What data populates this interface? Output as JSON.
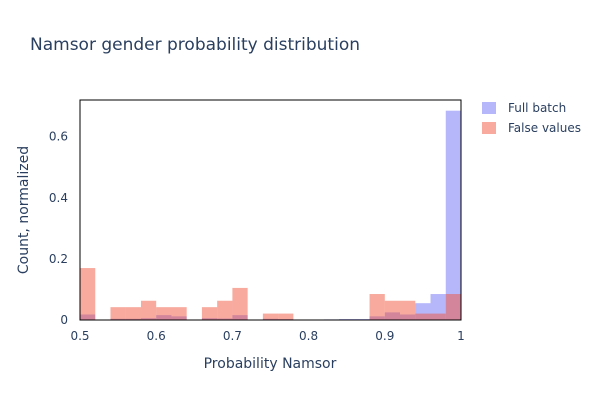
{
  "chart_data": {
    "type": "bar",
    "title": "Namsor gender probability distribution",
    "xlabel": "Probability Namsor",
    "ylabel": "Count, normalized",
    "xlim": [
      0.5,
      1.0
    ],
    "ylim": [
      0,
      0.72
    ],
    "bin_width": 0.02,
    "x_ticks": [
      "0.5",
      "0.6",
      "0.7",
      "0.8",
      "0.9",
      "1"
    ],
    "x_tick_values": [
      0.5,
      0.6,
      0.7,
      0.8,
      0.9,
      1.0
    ],
    "y_ticks": [
      "0",
      "0.2",
      "0.4",
      "0.6"
    ],
    "y_tick_values": [
      0,
      0.2,
      0.4,
      0.6
    ],
    "grid": true,
    "legend_position": "top-right",
    "series": [
      {
        "name": "Full batch",
        "color": "#6e6ef7",
        "opacity": 0.5,
        "bins": [
          {
            "x": 0.5,
            "value": 0.018
          },
          {
            "x": 0.54,
            "value": 0.004
          },
          {
            "x": 0.56,
            "value": 0.004
          },
          {
            "x": 0.58,
            "value": 0.006
          },
          {
            "x": 0.6,
            "value": 0.016
          },
          {
            "x": 0.62,
            "value": 0.012
          },
          {
            "x": 0.66,
            "value": 0.006
          },
          {
            "x": 0.68,
            "value": 0.005
          },
          {
            "x": 0.7,
            "value": 0.016
          },
          {
            "x": 0.74,
            "value": 0.004
          },
          {
            "x": 0.76,
            "value": 0.003
          },
          {
            "x": 0.82,
            "value": 0.002
          },
          {
            "x": 0.84,
            "value": 0.003
          },
          {
            "x": 0.86,
            "value": 0.003
          },
          {
            "x": 0.88,
            "value": 0.012
          },
          {
            "x": 0.9,
            "value": 0.025
          },
          {
            "x": 0.92,
            "value": 0.018
          },
          {
            "x": 0.94,
            "value": 0.055
          },
          {
            "x": 0.96,
            "value": 0.085
          },
          {
            "x": 0.98,
            "value": 0.685
          }
        ]
      },
      {
        "name": "False values",
        "color": "#ef553b",
        "opacity": 0.5,
        "bins": [
          {
            "x": 0.5,
            "value": 0.17
          },
          {
            "x": 0.54,
            "value": 0.042
          },
          {
            "x": 0.56,
            "value": 0.042
          },
          {
            "x": 0.58,
            "value": 0.063
          },
          {
            "x": 0.6,
            "value": 0.042
          },
          {
            "x": 0.62,
            "value": 0.042
          },
          {
            "x": 0.66,
            "value": 0.042
          },
          {
            "x": 0.68,
            "value": 0.063
          },
          {
            "x": 0.7,
            "value": 0.105
          },
          {
            "x": 0.74,
            "value": 0.021
          },
          {
            "x": 0.76,
            "value": 0.021
          },
          {
            "x": 0.88,
            "value": 0.085
          },
          {
            "x": 0.9,
            "value": 0.063
          },
          {
            "x": 0.92,
            "value": 0.063
          },
          {
            "x": 0.94,
            "value": 0.021
          },
          {
            "x": 0.96,
            "value": 0.021
          },
          {
            "x": 0.98,
            "value": 0.085
          }
        ]
      }
    ]
  }
}
